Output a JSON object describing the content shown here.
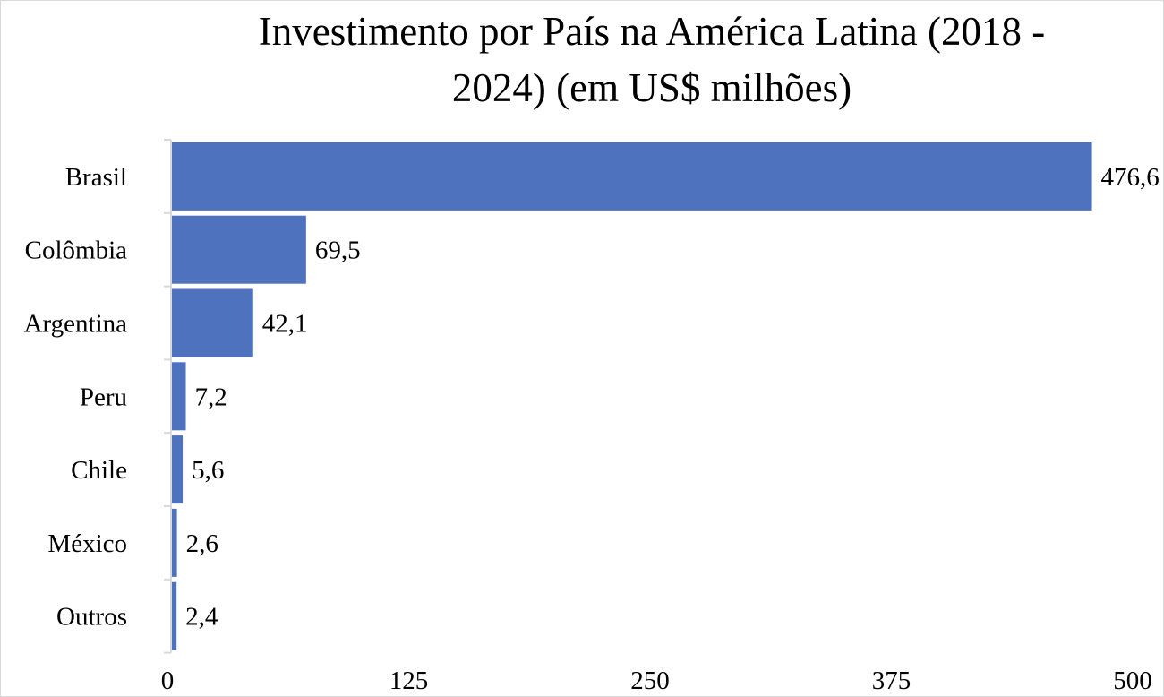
{
  "chart_data": {
    "type": "bar",
    "orientation": "horizontal",
    "title_lines": [
      "Investimento por País na América Latina (2018 -",
      "2024) (em US$ milhões)"
    ],
    "categories": [
      "Brasil",
      "Colômbia",
      "Argentina",
      "Peru",
      "Chile",
      "México",
      "Outros"
    ],
    "values": [
      476.6,
      69.5,
      42.1,
      7.2,
      5.6,
      2.6,
      2.4
    ],
    "value_labels": [
      "476,6",
      "69,5",
      "42,1",
      "7,2",
      "5,6",
      "2,6",
      "2,4"
    ],
    "xlim": [
      0,
      500
    ],
    "x_ticks": [
      0,
      125,
      250,
      375,
      500
    ],
    "x_tick_labels": [
      "0",
      "125",
      "250",
      "375",
      "500"
    ],
    "grid": false,
    "legend": "none",
    "bar_color": "#4e72be",
    "axis_color": "#d9d9d9"
  }
}
